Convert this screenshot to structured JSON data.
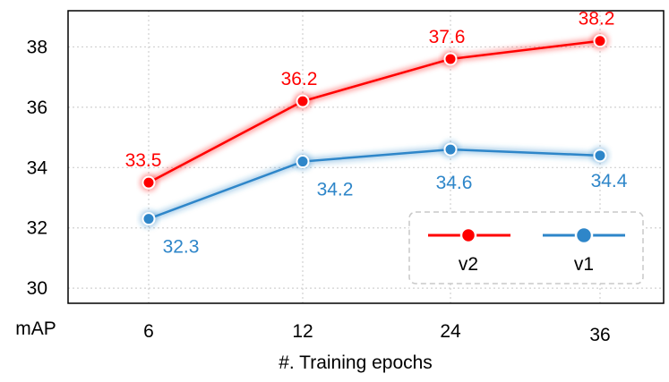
{
  "chart_data": {
    "type": "line",
    "xlabel": "#. Training epochs",
    "ylabel": "mAP",
    "categories": [
      "6",
      "12",
      "24",
      "36"
    ],
    "ylim": [
      29.5,
      39.2
    ],
    "yticks": [
      30,
      32,
      34,
      36,
      38
    ],
    "grid": true,
    "legend_position": "bottom-right",
    "series": [
      {
        "name": "v2",
        "color": "#ff0000",
        "values": [
          33.5,
          36.2,
          37.6,
          38.2
        ],
        "labels": [
          "33.5",
          "36.2",
          "37.6",
          "38.2"
        ],
        "label_side": "above"
      },
      {
        "name": "v1",
        "color": "#2e86c9",
        "values": [
          32.3,
          34.2,
          34.6,
          34.4
        ],
        "labels": [
          "32.3",
          "34.2",
          "34.6",
          "34.4"
        ],
        "label_side": "below"
      }
    ]
  }
}
